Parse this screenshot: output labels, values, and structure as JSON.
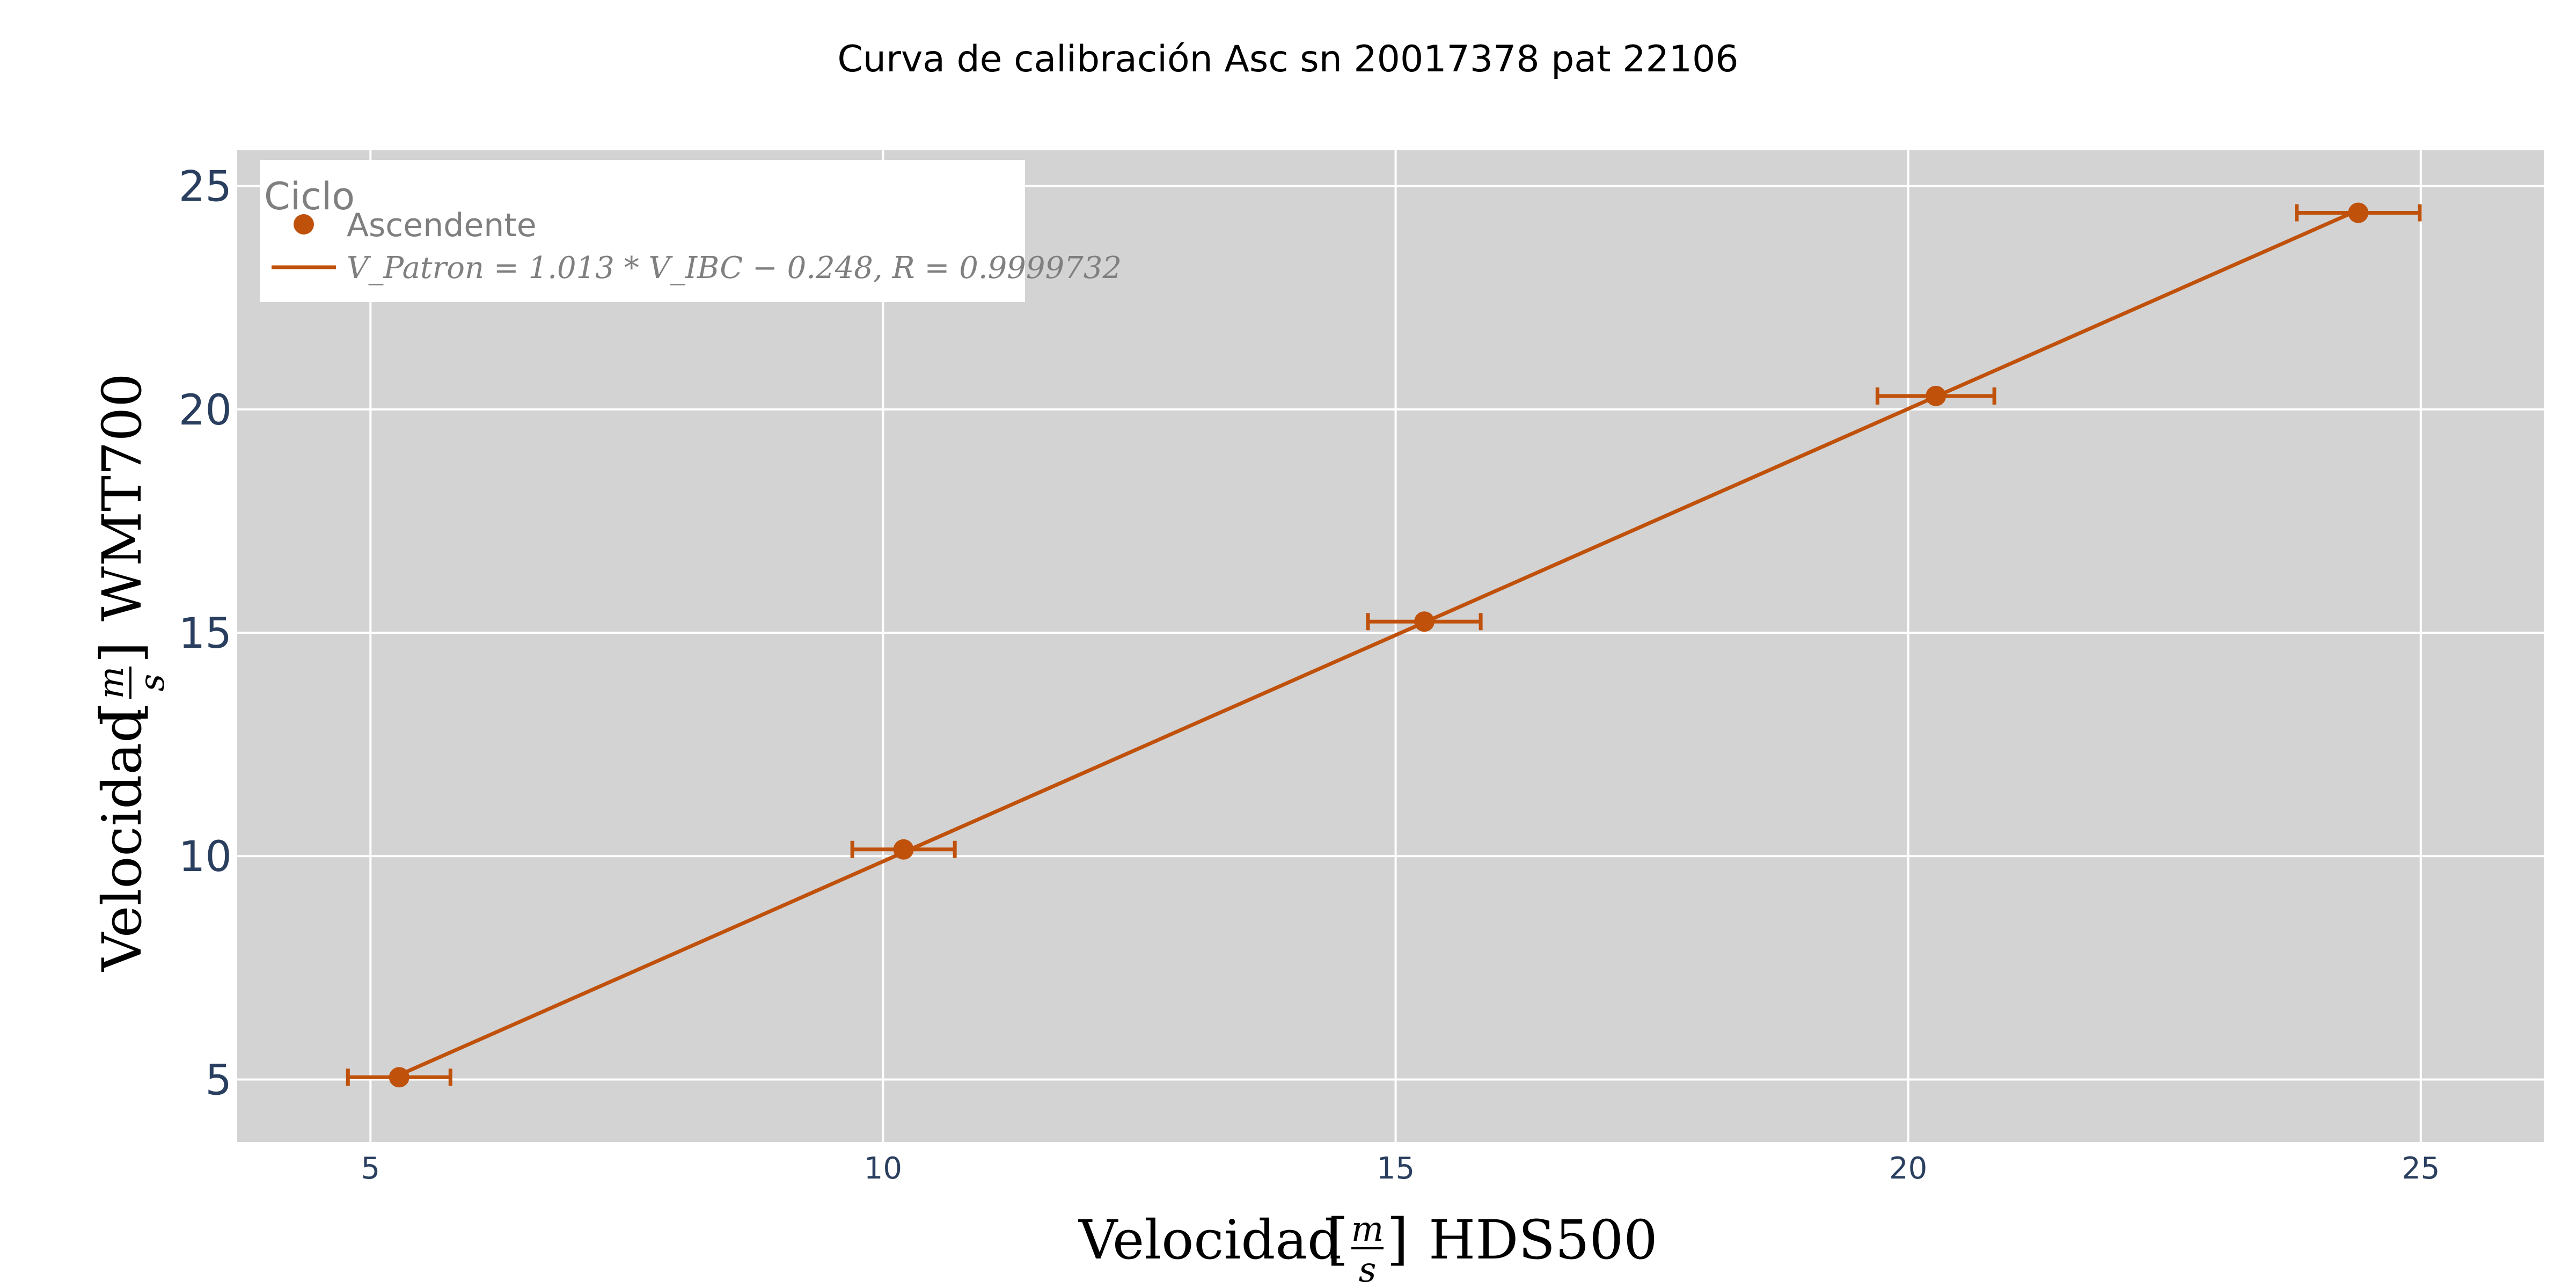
{
  "chart_data": {
    "type": "scatter",
    "title": "Curva de calibración Asc sn 20017378 pat 22106",
    "xlabel": "Velocidad [m/s] HDS500",
    "ylabel": "Velocidad [m/s] WMT700",
    "xlim": [
      3.7,
      26.2
    ],
    "ylim": [
      3.6,
      25.8
    ],
    "x_ticks": [
      5,
      10,
      15,
      20,
      25
    ],
    "y_ticks": [
      5,
      10,
      15,
      20,
      25
    ],
    "grid": true,
    "legend": {
      "title": "Ciclo",
      "placement": "top-left",
      "entries": [
        "Ascendente",
        "V_Patron = 1.013 * V_IBC − 0.248, R = 0.9999732"
      ]
    },
    "series": [
      {
        "name": "Ascendente",
        "mode": "markers",
        "color": "#c0510a",
        "x": [
          5.28,
          10.2,
          15.28,
          20.27,
          24.39
        ],
        "y": [
          5.05,
          10.15,
          15.25,
          20.3,
          24.4
        ],
        "x_error": [
          0.5,
          0.5,
          0.55,
          0.57,
          0.6
        ]
      },
      {
        "name": "V_Patron = 1.013 * V_IBC − 0.248, R = 0.9999732",
        "mode": "line",
        "color": "#c0510a",
        "x": [
          5.28,
          24.39
        ],
        "y": [
          5.1,
          24.46
        ]
      }
    ]
  }
}
